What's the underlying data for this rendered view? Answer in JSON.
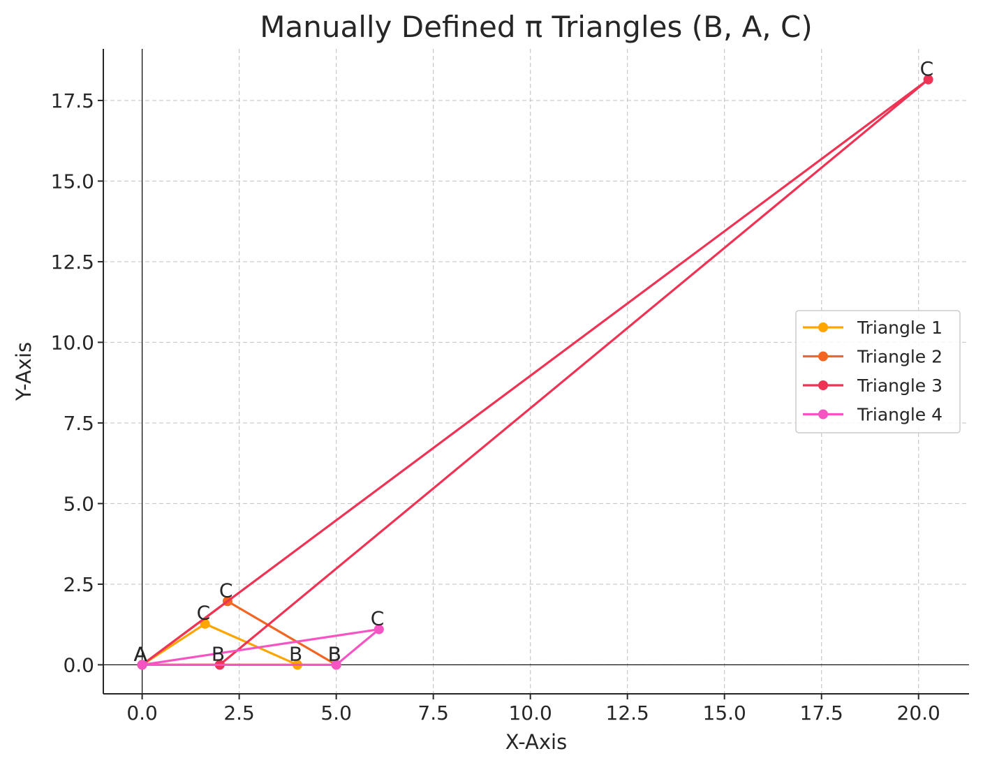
{
  "chart_data": {
    "type": "line",
    "title": "Manually Defined π Triangles (B, A, C)",
    "xlabel": "X-Axis",
    "ylabel": "Y-Axis",
    "xlim": [
      -1.0,
      21.3
    ],
    "ylim": [
      -0.9,
      19.1
    ],
    "xticks": [
      0.0,
      2.5,
      5.0,
      7.5,
      10.0,
      12.5,
      15.0,
      17.5,
      20.0
    ],
    "xtick_labels": [
      "0.0",
      "2.5",
      "5.0",
      "7.5",
      "10.0",
      "12.5",
      "15.0",
      "17.5",
      "20.0"
    ],
    "yticks": [
      0.0,
      2.5,
      5.0,
      7.5,
      10.0,
      12.5,
      15.0,
      17.5
    ],
    "ytick_labels": [
      "0.0",
      "2.5",
      "5.0",
      "7.5",
      "10.0",
      "12.5",
      "15.0",
      "17.5"
    ],
    "grid": true,
    "legend_position": "center-right",
    "series": [
      {
        "name": "Triangle 1",
        "color": "#FFA500",
        "points": [
          {
            "label": "B",
            "x": 4.0,
            "y": 0.0
          },
          {
            "label": "A",
            "x": 0.0,
            "y": 0.0
          },
          {
            "label": "C",
            "x": 1.62,
            "y": 1.27
          },
          {
            "label": "",
            "x": 4.0,
            "y": 0.0
          }
        ]
      },
      {
        "name": "Triangle 2",
        "color": "#F26522",
        "points": [
          {
            "label": "B",
            "x": 5.0,
            "y": 0.0
          },
          {
            "label": "A",
            "x": 0.0,
            "y": 0.0
          },
          {
            "label": "C",
            "x": 2.2,
            "y": 1.97
          },
          {
            "label": "",
            "x": 5.0,
            "y": 0.0
          }
        ]
      },
      {
        "name": "Triangle 3",
        "color": "#EE3355",
        "points": [
          {
            "label": "B",
            "x": 2.0,
            "y": 0.0
          },
          {
            "label": "A",
            "x": 0.0,
            "y": 0.0
          },
          {
            "label": "C",
            "x": 20.25,
            "y": 18.15
          },
          {
            "label": "",
            "x": 2.0,
            "y": 0.0
          }
        ]
      },
      {
        "name": "Triangle 4",
        "color": "#F754C3",
        "points": [
          {
            "label": "B",
            "x": 5.0,
            "y": 0.0
          },
          {
            "label": "A",
            "x": 0.0,
            "y": 0.0
          },
          {
            "label": "C",
            "x": 6.1,
            "y": 1.1
          },
          {
            "label": "",
            "x": 5.0,
            "y": 0.0
          }
        ]
      }
    ]
  }
}
